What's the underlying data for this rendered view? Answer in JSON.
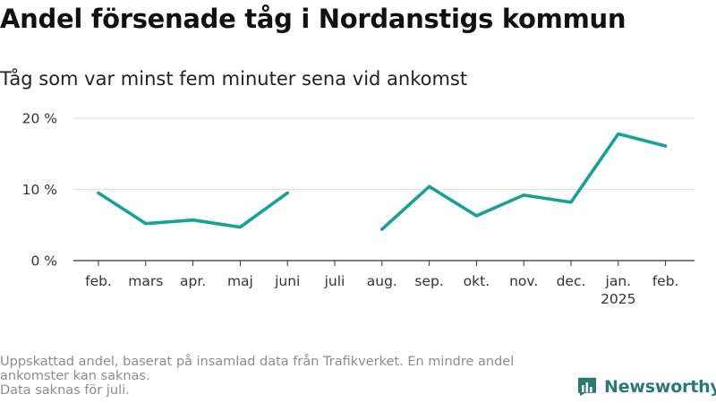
{
  "title": "Andel försenade tåg i Nordanstigs kommun",
  "subtitle": "Tåg som var minst fem minuter sena vid ankomst",
  "footnote": {
    "line1": "Uppskattad andel, baserat på insamlad data från Trafikverket. En mindre andel ankomster kan saknas.",
    "line2": "Data saknas för juli."
  },
  "brand": "Newsworthy",
  "colors": {
    "line": "#17a197",
    "grid": "#dddddd",
    "axis": "#333333",
    "logo": "#2a7a74"
  },
  "chart_data": {
    "type": "line",
    "categories": [
      "feb.",
      "mars",
      "apr.",
      "maj",
      "juni",
      "juli",
      "aug.",
      "sep.",
      "okt.",
      "nov.",
      "dec.",
      "jan.",
      "feb."
    ],
    "year_label": {
      "category_index": 11,
      "text": "2025"
    },
    "series": [
      {
        "values": [
          9.5,
          5.2,
          5.7,
          4.7,
          9.5,
          null,
          4.4,
          10.4,
          6.3,
          9.2,
          8.2,
          17.8,
          16.1
        ]
      }
    ],
    "ylim": [
      0,
      20
    ],
    "yticks": [
      0,
      10,
      20
    ],
    "ytick_labels": [
      "0 %",
      "10 %",
      "20 %"
    ],
    "grid": true
  }
}
